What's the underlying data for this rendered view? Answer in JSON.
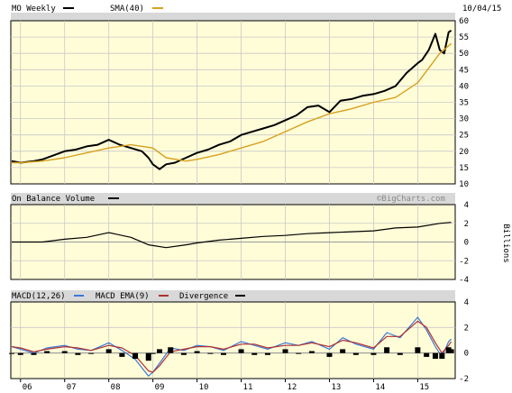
{
  "chart_data": [
    {
      "panel": "price",
      "type": "line",
      "title": "MO Weekly",
      "date": "10/04/15",
      "legend": [
        {
          "label": "MO Weekly",
          "color": "#000000"
        },
        {
          "label": "SMA(40)",
          "color": "#d8a020"
        }
      ],
      "x_ticks": [
        "06",
        "07",
        "08",
        "09",
        "10",
        "11",
        "12",
        "13",
        "14",
        "15"
      ],
      "y_ticks": [
        10,
        15,
        20,
        25,
        30,
        35,
        40,
        45,
        50,
        55,
        60
      ],
      "ylim": [
        10,
        60
      ],
      "grid": true,
      "panel_bg": "#fffdd8",
      "series": [
        {
          "name": "MO Weekly",
          "color": "#000000",
          "x": [
            2005.8,
            2006.0,
            2006.3,
            2006.5,
            2006.8,
            2007.0,
            2007.25,
            2007.5,
            2007.75,
            2008.0,
            2008.25,
            2008.5,
            2008.75,
            2008.9,
            2009.0,
            2009.15,
            2009.3,
            2009.5,
            2009.75,
            2010.0,
            2010.25,
            2010.5,
            2010.75,
            2011.0,
            2011.25,
            2011.5,
            2011.75,
            2012.0,
            2012.25,
            2012.5,
            2012.75,
            2013.0,
            2013.25,
            2013.5,
            2013.75,
            2014.0,
            2014.25,
            2014.5,
            2014.75,
            2015.0,
            2015.1,
            2015.25,
            2015.4,
            2015.5,
            2015.6,
            2015.7,
            2015.76
          ],
          "values": [
            17,
            16.5,
            17,
            17.5,
            19,
            20,
            20.5,
            21.5,
            22,
            23.5,
            22,
            21,
            20,
            18,
            16,
            14.5,
            16,
            16.5,
            18,
            19.5,
            20.5,
            22,
            23,
            25,
            26,
            27,
            28,
            29.5,
            31,
            33.5,
            34,
            32,
            35.5,
            36,
            37,
            37.5,
            38.5,
            40,
            44,
            47,
            48,
            51,
            56,
            51,
            50,
            56.5,
            57
          ]
        },
        {
          "name": "SMA(40)",
          "color": "#d8a020",
          "x": [
            2005.8,
            2006.0,
            2006.5,
            2007.0,
            2007.5,
            2008.0,
            2008.5,
            2009.0,
            2009.3,
            2009.75,
            2010.0,
            2010.5,
            2011.0,
            2011.5,
            2012.0,
            2012.5,
            2013.0,
            2013.5,
            2014.0,
            2014.5,
            2015.0,
            2015.5,
            2015.76
          ],
          "values": [
            16.5,
            16.5,
            17,
            18,
            19.5,
            21,
            22,
            21,
            18,
            17,
            17.5,
            19,
            21,
            23,
            26,
            29,
            31.5,
            33,
            35,
            36.5,
            41,
            50,
            53
          ]
        }
      ]
    },
    {
      "panel": "obv",
      "type": "line",
      "title": "On Balance Volume",
      "watermark": "©BigCharts.com",
      "y_ticks": [
        4,
        2,
        0,
        -2,
        -4
      ],
      "ylabel": "Billions",
      "ylim": [
        -4,
        4
      ],
      "series": [
        {
          "name": "On Balance Volume",
          "color": "#000000",
          "x": [
            2005.8,
            2006.5,
            2007.0,
            2007.5,
            2008.0,
            2008.5,
            2008.9,
            2009.3,
            2009.75,
            2010.0,
            2010.5,
            2011.0,
            2011.5,
            2012.0,
            2012.5,
            2013.0,
            2013.5,
            2014.0,
            2014.5,
            2015.0,
            2015.5,
            2015.76
          ],
          "values": [
            0,
            0,
            0.3,
            0.5,
            1.0,
            0.5,
            -0.3,
            -0.6,
            -0.3,
            -0.1,
            0.2,
            0.4,
            0.6,
            0.7,
            0.9,
            1.0,
            1.1,
            1.2,
            1.5,
            1.6,
            2.0,
            2.1
          ]
        }
      ]
    },
    {
      "panel": "macd",
      "type": "line",
      "legend": [
        {
          "label": "MACD(12,26)",
          "color": "#000000"
        },
        {
          "label": "MACD EMA(9)",
          "color": "#3c78d8"
        },
        {
          "label": "Divergence",
          "color": "#b03030"
        }
      ],
      "y_ticks": [
        4,
        2,
        0,
        -2
      ],
      "ylim": [
        -2,
        4
      ],
      "series": [
        {
          "name": "MACD(12,26)",
          "color": "#3c78d8",
          "x": [
            2005.8,
            2006.0,
            2006.3,
            2006.6,
            2007.0,
            2007.3,
            2007.6,
            2008.0,
            2008.3,
            2008.6,
            2008.9,
            2009.0,
            2009.15,
            2009.4,
            2009.7,
            2010.0,
            2010.3,
            2010.6,
            2011.0,
            2011.3,
            2011.6,
            2012.0,
            2012.3,
            2012.6,
            2013.0,
            2013.3,
            2013.6,
            2014.0,
            2014.3,
            2014.6,
            2015.0,
            2015.2,
            2015.4,
            2015.55,
            2015.7,
            2015.76
          ],
          "values": [
            0.5,
            0.3,
            0,
            0.4,
            0.6,
            0.3,
            0.2,
            0.8,
            0.2,
            -0.5,
            -1.8,
            -1.5,
            -0.8,
            0.4,
            0.2,
            0.6,
            0.5,
            0.2,
            0.9,
            0.6,
            0.3,
            0.8,
            0.6,
            0.9,
            0.3,
            1.2,
            0.7,
            0.3,
            1.6,
            1.2,
            2.8,
            1.8,
            0.5,
            -0.3,
            0.9,
            1.1
          ]
        },
        {
          "name": "MACD EMA(9)",
          "color": "#b03030",
          "x": [
            2005.8,
            2006.0,
            2006.3,
            2006.6,
            2007.0,
            2007.3,
            2007.6,
            2008.0,
            2008.3,
            2008.6,
            2008.9,
            2009.0,
            2009.15,
            2009.4,
            2009.7,
            2010.0,
            2010.3,
            2010.6,
            2011.0,
            2011.3,
            2011.6,
            2012.0,
            2012.3,
            2012.6,
            2013.0,
            2013.3,
            2013.6,
            2014.0,
            2014.3,
            2014.6,
            2015.0,
            2015.2,
            2015.4,
            2015.55,
            2015.7,
            2015.76
          ],
          "values": [
            0.5,
            0.4,
            0.1,
            0.3,
            0.5,
            0.4,
            0.2,
            0.6,
            0.4,
            -0.2,
            -1.4,
            -1.5,
            -1.0,
            0.1,
            0.3,
            0.5,
            0.5,
            0.3,
            0.7,
            0.7,
            0.4,
            0.6,
            0.6,
            0.8,
            0.5,
            1.0,
            0.8,
            0.4,
            1.3,
            1.3,
            2.5,
            2.0,
            0.8,
            0.0,
            0.6,
            0.9
          ]
        }
      ]
    }
  ]
}
